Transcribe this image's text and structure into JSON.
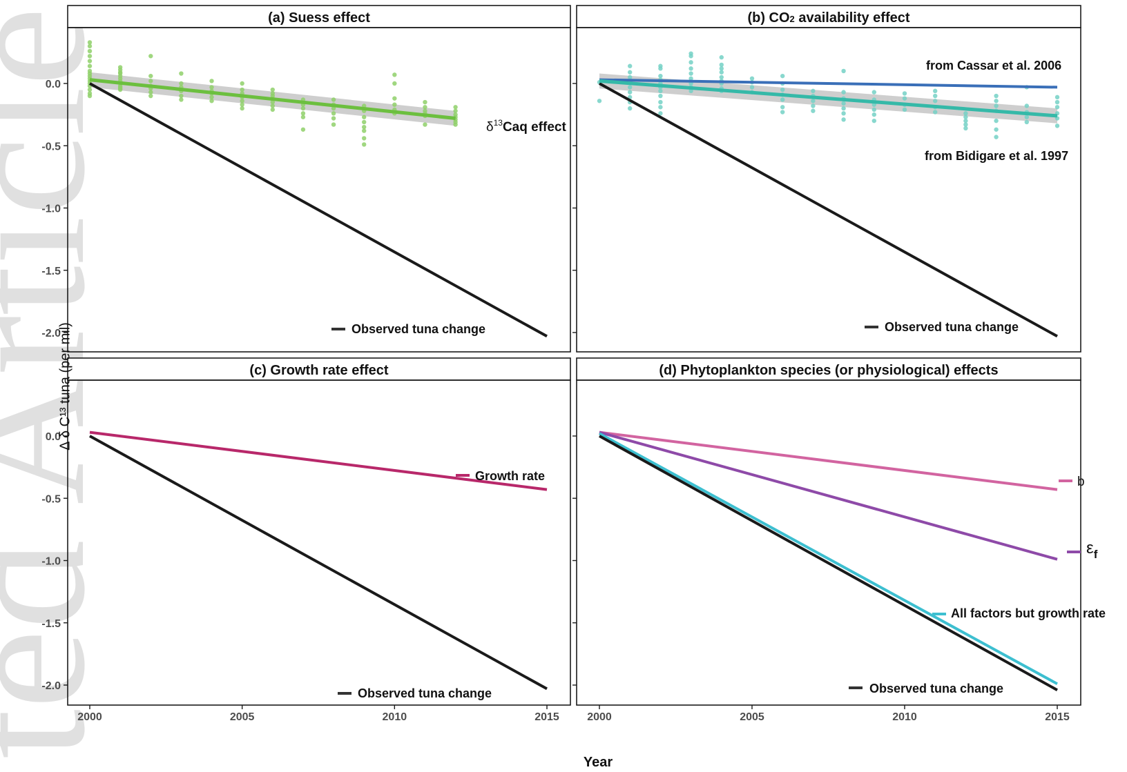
{
  "figure": {
    "ylabel": "Δ δ C¹³ tuna (per mil)",
    "xlabel": "Year",
    "watermark": "ted Article",
    "colors": {
      "observed": "#1a1a1a",
      "suess": "#6cbf3f",
      "suess_points": "#8fd06a",
      "co2_bidigare": "#35b9a8",
      "co2_points": "#74d1c6",
      "co2_cassar": "#3a6fb8",
      "growth": "#b8286a",
      "b": "#d264a0",
      "eps_f": "#8e4aa8",
      "all_factors": "#3dbfd0",
      "ci_band": "#bdbdbd"
    }
  },
  "chart_data": [
    {
      "id": "a",
      "type": "line",
      "title": "(a) Suess effect",
      "xlim": [
        2000,
        2015
      ],
      "ylim": [
        -2.12,
        0.45
      ],
      "xticks": [
        2000,
        2005,
        2010,
        2015
      ],
      "yticks": [
        0.0,
        -0.5,
        -1.0,
        -1.5,
        -2.0
      ],
      "ytick_labels": [
        "0.0",
        "-0.5",
        "-1.0",
        "-1.5",
        "-2.0"
      ],
      "series": [
        {
          "name": "Observed tuna change",
          "key": "observed",
          "x": [
            2000,
            2015
          ],
          "y": [
            0.0,
            -2.03
          ]
        },
        {
          "name": "δ13Caq effect",
          "key": "suess",
          "x": [
            2000,
            2012
          ],
          "y": [
            0.03,
            -0.28
          ],
          "band": 0.06
        }
      ],
      "scatter": {
        "key": "suess_points",
        "groups": [
          {
            "x": 2000,
            "y": [
              0.33,
              0.3,
              0.26,
              0.22,
              0.18,
              0.14,
              0.1,
              0.08,
              0.06,
              0.04,
              0.02,
              0.0,
              -0.02,
              -0.05,
              -0.08,
              -0.1
            ]
          },
          {
            "x": 2001,
            "y": [
              0.13,
              0.11,
              0.09,
              0.08,
              0.06,
              0.04,
              0.02,
              0.0,
              -0.02,
              -0.03,
              -0.04,
              -0.05
            ]
          },
          {
            "x": 2002,
            "y": [
              0.22,
              0.06,
              0.02,
              -0.02,
              -0.04,
              -0.07,
              -0.1
            ]
          },
          {
            "x": 2003,
            "y": [
              0.08,
              0.0,
              -0.03,
              -0.06,
              -0.1,
              -0.13
            ]
          },
          {
            "x": 2004,
            "y": [
              0.02,
              -0.03,
              -0.06,
              -0.08,
              -0.11,
              -0.14
            ]
          },
          {
            "x": 2005,
            "y": [
              0.0,
              -0.05,
              -0.08,
              -0.11,
              -0.14,
              -0.17,
              -0.2
            ]
          },
          {
            "x": 2006,
            "y": [
              -0.05,
              -0.08,
              -0.1,
              -0.12,
              -0.15,
              -0.18,
              -0.21
            ]
          },
          {
            "x": 2007,
            "y": [
              -0.13,
              -0.17,
              -0.2,
              -0.24,
              -0.27,
              -0.37
            ]
          },
          {
            "x": 2008,
            "y": [
              -0.13,
              -0.17,
              -0.2,
              -0.24,
              -0.28,
              -0.33
            ]
          },
          {
            "x": 2009,
            "y": [
              -0.18,
              -0.22,
              -0.27,
              -0.31,
              -0.35,
              -0.38,
              -0.44,
              -0.49
            ]
          },
          {
            "x": 2010,
            "y": [
              0.07,
              0.0,
              -0.12,
              -0.17,
              -0.21,
              -0.24
            ]
          },
          {
            "x": 2011,
            "y": [
              -0.15,
              -0.19,
              -0.22,
              -0.24,
              -0.26,
              -0.33
            ]
          },
          {
            "x": 2012,
            "y": [
              -0.19,
              -0.22,
              -0.25,
              -0.27,
              -0.29,
              -0.31,
              -0.33
            ]
          }
        ]
      },
      "labels": {
        "series": "Caq effect",
        "delta": "δ",
        "sup": "13",
        "observed": "Observed tuna change"
      }
    },
    {
      "id": "b",
      "type": "line",
      "title": "(b) CO",
      "title_sub": "2",
      "title_rest": " availability effect",
      "xlim": [
        2000,
        2015
      ],
      "ylim": [
        -2.12,
        0.45
      ],
      "series": [
        {
          "name": "Observed tuna change",
          "key": "observed",
          "x": [
            2000,
            2015
          ],
          "y": [
            0.0,
            -2.03
          ]
        },
        {
          "name": "from Cassar et al. 2006",
          "key": "co2_cassar",
          "x": [
            2000,
            2015
          ],
          "y": [
            0.03,
            -0.03
          ]
        },
        {
          "name": "from Bidigare et al. 1997",
          "key": "co2_bidigare",
          "x": [
            2000,
            2015
          ],
          "y": [
            0.02,
            -0.26
          ],
          "band": 0.06
        }
      ],
      "scatter": {
        "key": "co2_points",
        "groups": [
          {
            "x": 2000,
            "y": [
              0.01,
              -0.14
            ]
          },
          {
            "x": 2001,
            "y": [
              0.14,
              0.09,
              0.05,
              0.01,
              -0.03,
              -0.07,
              -0.11,
              -0.15,
              -0.2
            ]
          },
          {
            "x": 2002,
            "y": [
              0.14,
              0.12,
              0.06,
              0.03,
              0.0,
              -0.03,
              -0.06,
              -0.1,
              -0.15,
              -0.19,
              -0.24
            ]
          },
          {
            "x": 2003,
            "y": [
              0.24,
              0.22,
              0.17,
              0.12,
              0.08,
              0.04,
              0.0,
              -0.03,
              -0.06
            ]
          },
          {
            "x": 2004,
            "y": [
              0.21,
              0.15,
              0.12,
              0.09,
              0.05,
              0.02,
              0.0,
              -0.04,
              -0.06
            ]
          },
          {
            "x": 2005,
            "y": [
              0.04,
              0.01,
              -0.03,
              -0.07
            ]
          },
          {
            "x": 2006,
            "y": [
              0.06,
              0.0,
              -0.05,
              -0.09,
              -0.13,
              -0.19,
              -0.23
            ]
          },
          {
            "x": 2007,
            "y": [
              -0.06,
              -0.1,
              -0.14,
              -0.18,
              -0.22
            ]
          },
          {
            "x": 2008,
            "y": [
              0.1,
              -0.07,
              -0.12,
              -0.16,
              -0.2,
              -0.24,
              -0.29
            ]
          },
          {
            "x": 2009,
            "y": [
              -0.07,
              -0.13,
              -0.17,
              -0.21,
              -0.25,
              -0.3
            ]
          },
          {
            "x": 2010,
            "y": [
              -0.08,
              -0.12,
              -0.17,
              -0.21
            ]
          },
          {
            "x": 2011,
            "y": [
              -0.06,
              -0.1,
              -0.14,
              -0.19,
              -0.23
            ]
          },
          {
            "x": 2012,
            "y": [
              -0.24,
              -0.27,
              -0.3,
              -0.33,
              -0.36
            ]
          },
          {
            "x": 2013,
            "y": [
              -0.1,
              -0.14,
              -0.18,
              -0.22,
              -0.3,
              -0.37,
              -0.43
            ]
          },
          {
            "x": 2014,
            "y": [
              -0.03,
              -0.18,
              -0.23,
              -0.27,
              -0.31
            ]
          },
          {
            "x": 2015,
            "y": [
              -0.11,
              -0.15,
              -0.19,
              -0.24,
              -0.28,
              -0.34
            ]
          }
        ]
      },
      "labels": {
        "cassar": "from Cassar et al. 2006",
        "bidigare": "from Bidigare et al. 1997",
        "observed": "Observed tuna change"
      }
    },
    {
      "id": "c",
      "type": "line",
      "title": "(c) Growth rate effect",
      "xlim": [
        2000,
        2015
      ],
      "ylim": [
        -2.12,
        0.45
      ],
      "series": [
        {
          "name": "Observed tuna change",
          "key": "observed",
          "x": [
            2000,
            2015
          ],
          "y": [
            0.0,
            -2.03
          ]
        },
        {
          "name": "Growth rate",
          "key": "growth",
          "x": [
            2000,
            2015
          ],
          "y": [
            0.03,
            -0.43
          ]
        }
      ],
      "labels": {
        "growth": "Growth rate",
        "observed": "Observed tuna change"
      }
    },
    {
      "id": "d",
      "type": "line",
      "title": "(d) Phytoplankton species (or physiological) effects",
      "xlim": [
        2000,
        2015
      ],
      "ylim": [
        -2.12,
        0.45
      ],
      "series": [
        {
          "name": "b",
          "key": "b",
          "x": [
            2000,
            2015
          ],
          "y": [
            0.03,
            -0.43
          ]
        },
        {
          "name": "εf",
          "key": "eps_f",
          "x": [
            2000,
            2015
          ],
          "y": [
            0.03,
            -0.99
          ]
        },
        {
          "name": "All factors but growth rate",
          "key": "all_factors",
          "x": [
            2000,
            2015
          ],
          "y": [
            0.02,
            -1.99
          ]
        },
        {
          "name": "Observed tuna change",
          "key": "observed",
          "x": [
            2000,
            2015
          ],
          "y": [
            0.0,
            -2.04
          ]
        }
      ],
      "labels": {
        "b": "b",
        "eps": "ε",
        "eps_sub": "f",
        "all": "All factors but growth rate",
        "observed": "Observed tuna change"
      }
    }
  ]
}
